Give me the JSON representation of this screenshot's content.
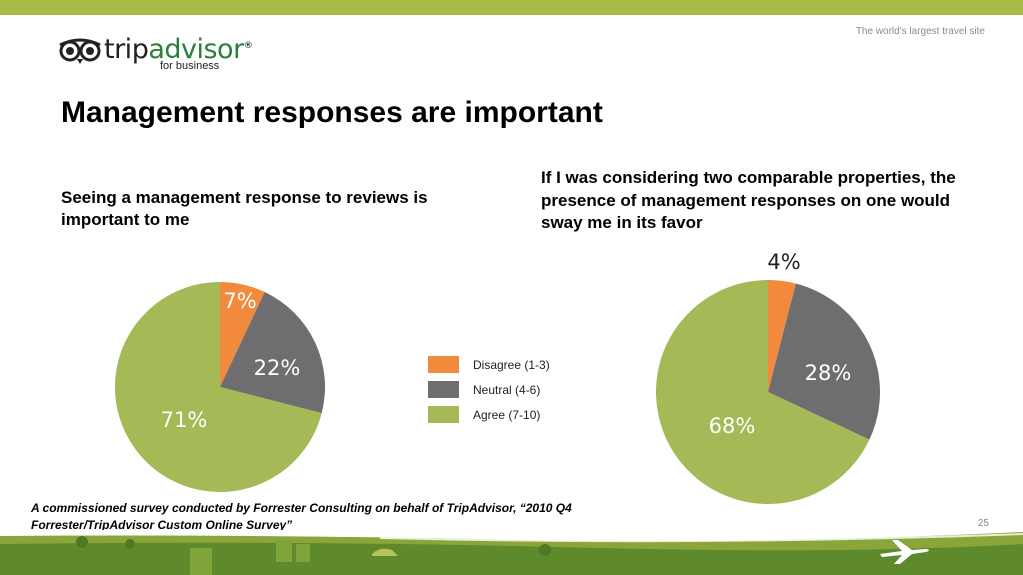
{
  "header": {
    "tagline": "The world's largest travel site",
    "logo": {
      "word_part1": "trip",
      "word_part2": "advisor",
      "registered": "®",
      "sub": "for business"
    }
  },
  "title": "Management responses are important",
  "colors": {
    "disagree": "#f28a3e",
    "neutral": "#6e6e70",
    "agree": "#a5b957",
    "topbar": "#a8bd46"
  },
  "legend": {
    "items": [
      {
        "label": "Disagree (1-3)",
        "color": "#f28a3e"
      },
      {
        "label": "Neutral (4-6)",
        "color": "#6e6e70"
      },
      {
        "label": "Agree (7-10)",
        "color": "#a5b957"
      }
    ]
  },
  "chart_data": [
    {
      "type": "pie",
      "title": "Seeing a management response to reviews is important to me",
      "categories": [
        "Disagree (1-3)",
        "Neutral (4-6)",
        "Agree (7-10)"
      ],
      "values": [
        7,
        22,
        71
      ],
      "labels": [
        "7%",
        "22%",
        "71%"
      ],
      "colors": [
        "#f28a3e",
        "#6e6e70",
        "#a5b957"
      ],
      "legend": "center"
    },
    {
      "type": "pie",
      "title": "If I was considering two comparable properties, the presence of management responses on one would sway me in its favor",
      "categories": [
        "Disagree (1-3)",
        "Neutral (4-6)",
        "Agree (7-10)"
      ],
      "values": [
        4,
        28,
        68
      ],
      "labels": [
        "4%",
        "28%",
        "68%"
      ],
      "colors": [
        "#f28a3e",
        "#6e6e70",
        "#a5b957"
      ],
      "legend": "center"
    }
  ],
  "footnote": "A commissioned survey conducted by Forrester Consulting on behalf of TripAdvisor, “2010 Q4 Forrester/TripAdvisor Custom Online Survey”",
  "page_number": "25"
}
